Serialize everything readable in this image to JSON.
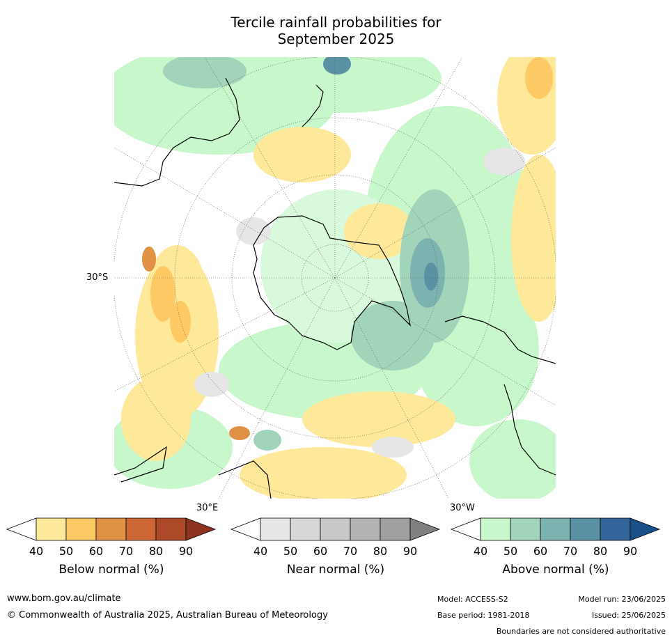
{
  "title_line1": "Tercile rainfall probabilities for",
  "title_line2": "September 2025",
  "map": {
    "projection": "south-polar-stereographic",
    "lat_labels": [
      "30°S"
    ],
    "lon_labels": [
      "30°E",
      "30°W"
    ]
  },
  "colorbars": [
    {
      "title": "Below normal (%)",
      "ticks": [
        "40",
        "50",
        "60",
        "70",
        "80",
        "90"
      ],
      "colors": [
        "#ffffff",
        "#fee99a",
        "#fdc964",
        "#e09146",
        "#cc6634",
        "#ad4a2a",
        "#8e3220"
      ]
    },
    {
      "title": "Near normal (%)",
      "ticks": [
        "40",
        "50",
        "60",
        "70",
        "80",
        "90"
      ],
      "colors": [
        "#ffffff",
        "#e6e6e6",
        "#d8d8d8",
        "#c8c8c8",
        "#b4b4b4",
        "#a0a0a0",
        "#808080"
      ]
    },
    {
      "title": "Above normal (%)",
      "ticks": [
        "40",
        "50",
        "60",
        "70",
        "80",
        "90"
      ],
      "colors": [
        "#ffffff",
        "#c7f7cb",
        "#a2d4b9",
        "#7cb2b0",
        "#5a92a3",
        "#33659a",
        "#1a4f8a"
      ]
    }
  ],
  "footer": {
    "website": "www.bom.gov.au/climate",
    "copyright": "© Commonwealth of Australia 2025, Australian Bureau of Meteorology",
    "model": "Model: ACCESS-S2",
    "model_run": "Model run: 23/06/2025",
    "base_period": "Base period: 1981-2018",
    "issued": "Issued: 25/06/2025",
    "disclaimer": "Boundaries are not considered authoritative"
  }
}
